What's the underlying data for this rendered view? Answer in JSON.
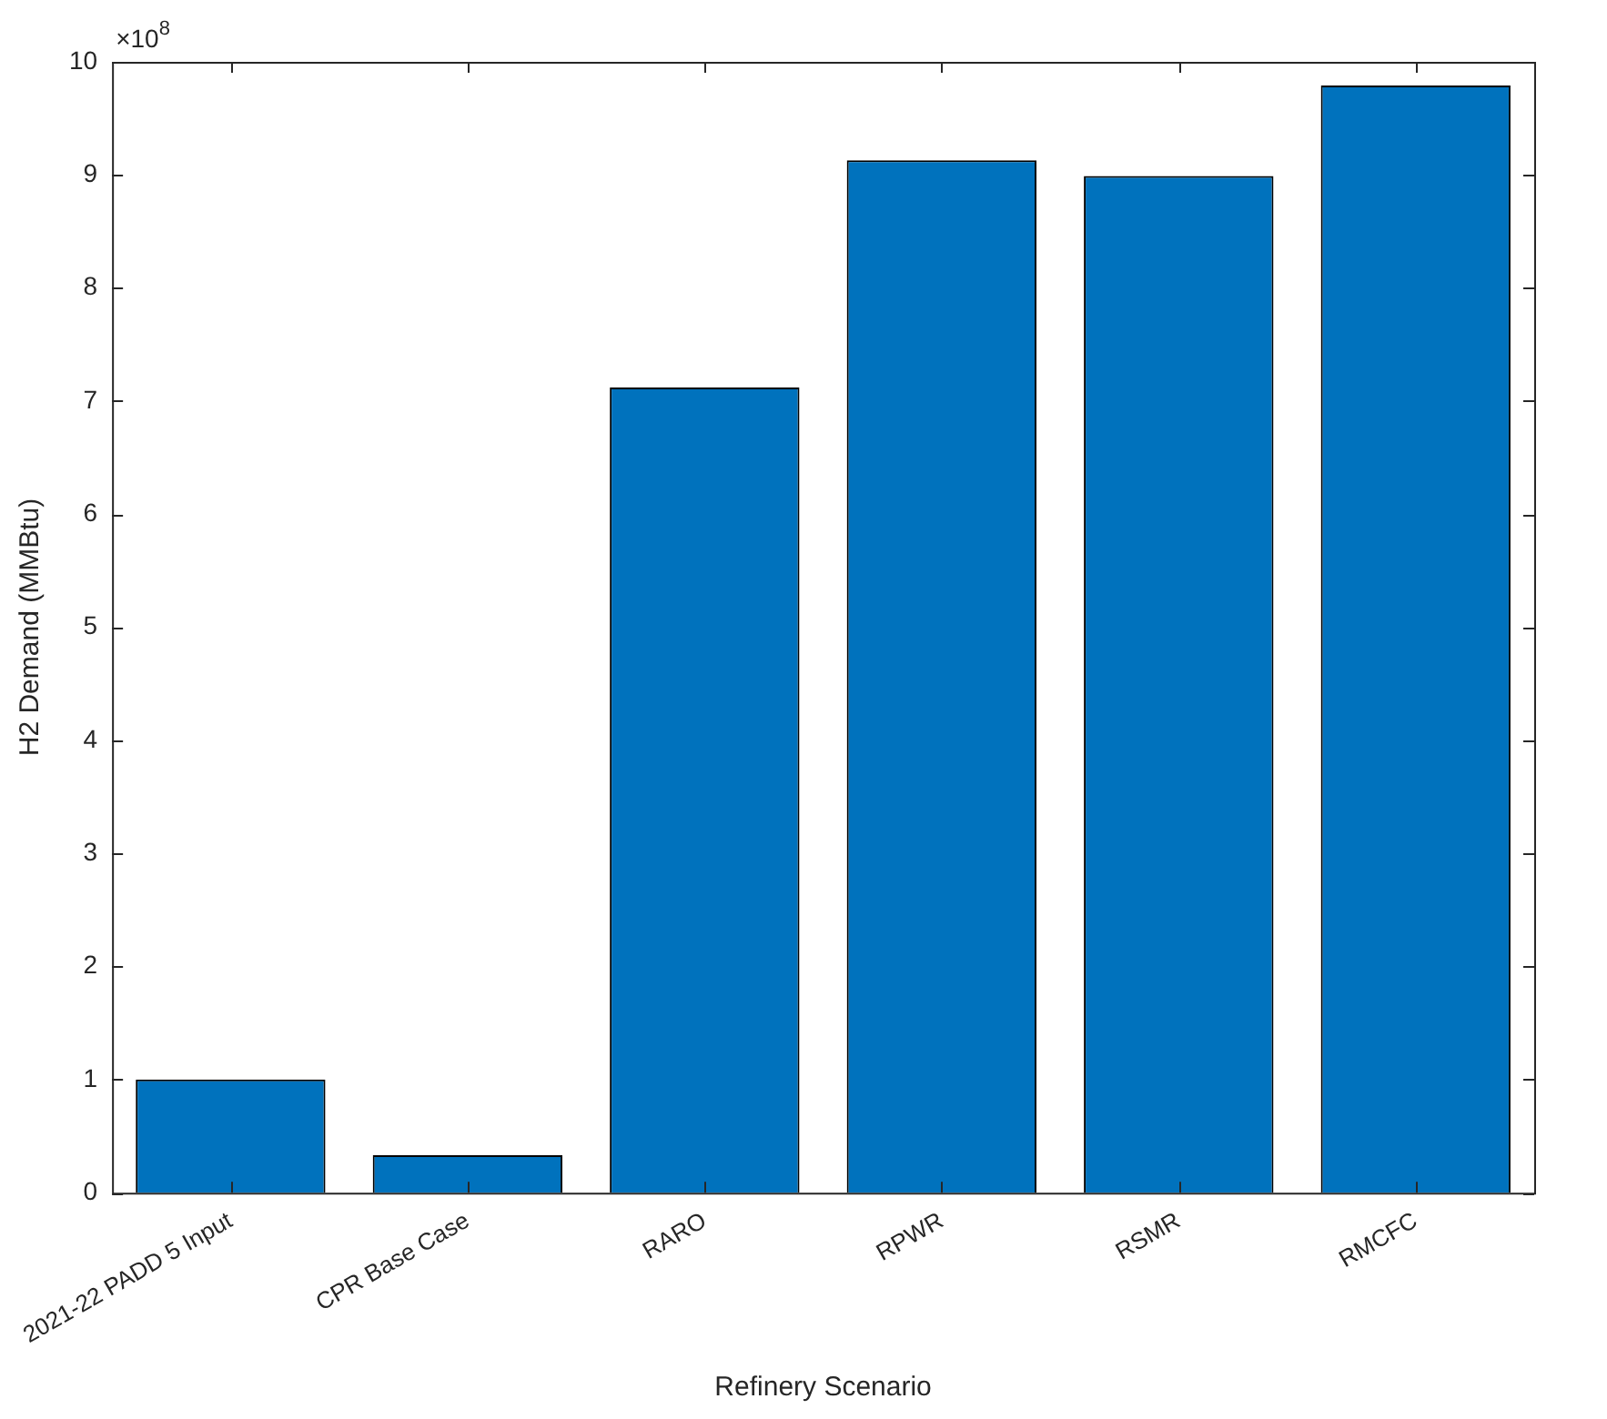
{
  "chart_data": {
    "type": "bar",
    "xlabel": "Refinery Scenario",
    "ylabel": "H2 Demand (MMBtu)",
    "categories": [
      "2021-22 PADD 5 Input",
      "CPR Base Case",
      "RARO",
      "RPWR",
      "RSMR",
      "RMCFC"
    ],
    "values": [
      1.0,
      0.33,
      7.12,
      9.13,
      8.99,
      9.79
    ],
    "color": "#0072bd",
    "ylim": [
      0,
      10
    ],
    "yticks": [
      0,
      1,
      2,
      3,
      4,
      5,
      6,
      7,
      8,
      9,
      10
    ],
    "annotations": [
      "×10$^{8}$"
    ],
    "grid": false,
    "legend": false
  }
}
